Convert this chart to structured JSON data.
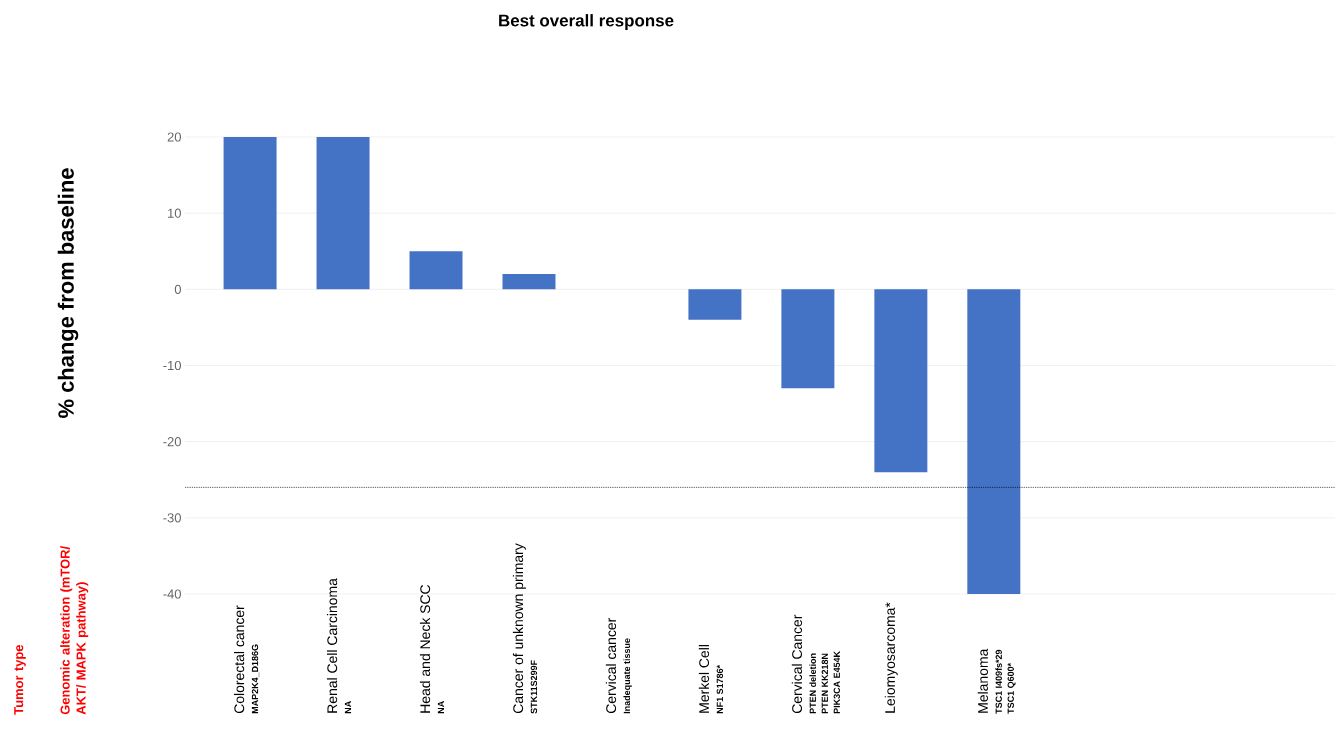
{
  "chart_data": {
    "type": "bar",
    "title": "Best overall response",
    "ylabel": "% change from baseline",
    "categories": [
      "Colorectal cancer",
      "Renal Cell Carcinoma",
      "Head and Neck SCC",
      "Cancer of unknown primary",
      "Cervical cancer",
      "Merkel Cell",
      "Cervical Cancer",
      "Leiomyosarcoma*",
      "Melanoma"
    ],
    "values": [
      20,
      20,
      5,
      2,
      0,
      -4,
      -13,
      -24,
      -40
    ],
    "color": "#4472c4",
    "ylim": [
      -40,
      20
    ],
    "yticks": [
      -40,
      -30,
      -20,
      -10,
      0,
      10,
      20
    ],
    "grid": "y",
    "ref_lines": [
      {
        "axis": "y",
        "value": -26,
        "color": "#000000",
        "line_style": "dotted"
      }
    ],
    "annotations": [
      "Tumor type",
      "Genomic alteration (mTOR/ AKT/ MAPK pathway)",
      "MAP2K4_D186G",
      "NA",
      "NA",
      "STK11S299F",
      "Inadequate tissue",
      "NF1 S1786*",
      "PTEN deletion",
      "PTEN KK218N",
      "PIK3CA E454K",
      "TSC1 I409fs*29",
      "TSC1 Q600*"
    ]
  }
}
